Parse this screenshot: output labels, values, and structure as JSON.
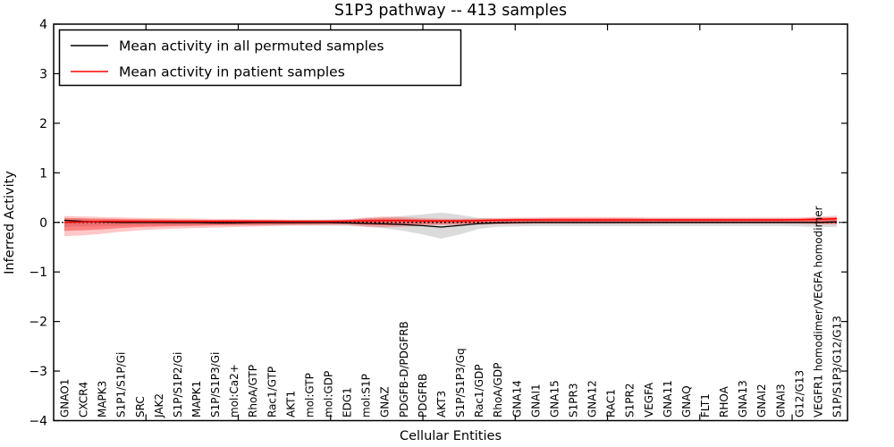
{
  "figure": {
    "title": "S1P3 pathway -- 413 samples",
    "xlabel": "Cellular Entities",
    "ylabel": "Inferred Activity",
    "legend": {
      "entries": [
        {
          "label": "Mean activity in all permuted samples",
          "color": "#000000"
        },
        {
          "label": "Mean activity in patient samples",
          "color": "#ff0000"
        }
      ]
    }
  },
  "chart_data": {
    "type": "line",
    "title": "S1P3 pathway -- 413 samples",
    "xlabel": "Cellular Entities",
    "ylabel": "Inferred Activity",
    "ylim": [
      -4,
      4
    ],
    "yticks": [
      -4,
      -3,
      -2,
      -1,
      0,
      1,
      2,
      3,
      4
    ],
    "grid": false,
    "legend_position": "upper left",
    "zero_line": {
      "y": 0,
      "style": "dotted",
      "color": "#000000"
    },
    "categories": [
      "GNAO1",
      "CXCR4",
      "MAPK3",
      "S1P1/S1P/Gi",
      "SRC",
      "JAK2",
      "S1P/S1P2/Gi",
      "MAPK1",
      "S1P/S1P3/Gi",
      "mol:Ca2+",
      "RhoA/GTP",
      "Rac1/GTP",
      "AKT1",
      "mol:GTP",
      "mol:GDP",
      "EDG1",
      "mol:S1P",
      "GNAZ",
      "PDGFB-D/PDGFRB",
      "PDGFRB",
      "AKT3",
      "S1P/S1P3/Gq",
      "Rac1/GDP",
      "RhoA/GDP",
      "GNA14",
      "GNAI1",
      "GNA15",
      "S1PR3",
      "GNA12",
      "RAC1",
      "S1PR2",
      "VEGFA",
      "GNA11",
      "GNAQ",
      "FLT1",
      "RHOA",
      "GNA13",
      "GNAI2",
      "GNAI3",
      "G12/G13",
      "VEGFR1 homodimer/VEGFA homodimer",
      "S1P/S1P3/G12/G13"
    ],
    "series": [
      {
        "name": "Mean activity in all permuted samples",
        "color": "#000000",
        "width": 1.3,
        "values": [
          0.04,
          0.02,
          0.01,
          0,
          0,
          0,
          -0.005,
          -0.005,
          -0.01,
          -0.01,
          -0.005,
          -0.005,
          -0.005,
          -0.005,
          -0.005,
          -0.01,
          -0.02,
          -0.03,
          -0.045,
          -0.065,
          -0.095,
          -0.06,
          -0.025,
          -0.01,
          -0.005,
          0,
          0,
          0,
          0,
          0,
          0,
          0,
          0,
          0,
          0,
          0,
          0,
          0,
          0,
          0,
          0,
          0.01
        ]
      },
      {
        "name": "Mean activity in patient samples",
        "color": "#ff0000",
        "width": 1.5,
        "values": [
          0,
          0.01,
          0.02,
          0.02,
          0.02,
          0.02,
          0.02,
          0.02,
          0.02,
          0.02,
          0.02,
          0.02,
          0.02,
          0.02,
          0.02,
          0.025,
          0.03,
          0.035,
          0.035,
          0.03,
          0.03,
          0.03,
          0.035,
          0.045,
          0.05,
          0.05,
          0.05,
          0.05,
          0.05,
          0.05,
          0.05,
          0.05,
          0.05,
          0.05,
          0.05,
          0.05,
          0.05,
          0.05,
          0.05,
          0.055,
          0.06,
          0.075
        ]
      }
    ],
    "bands": [
      {
        "name": "permuted-std-band",
        "fill": "rgba(125,125,125,0.28)",
        "upper": [
          0.07,
          0.065,
          0.06,
          0.055,
          0.05,
          0.05,
          0.05,
          0.05,
          0.05,
          0.05,
          0.05,
          0.05,
          0.05,
          0.05,
          0.055,
          0.06,
          0.08,
          0.1,
          0.13,
          0.16,
          0.2,
          0.15,
          0.09,
          0.075,
          0.07,
          0.07,
          0.07,
          0.07,
          0.07,
          0.07,
          0.07,
          0.07,
          0.07,
          0.07,
          0.07,
          0.07,
          0.07,
          0.07,
          0.07,
          0.075,
          0.1,
          0.1
        ],
        "lower": [
          -0.09,
          -0.08,
          -0.075,
          -0.07,
          -0.065,
          -0.06,
          -0.06,
          -0.06,
          -0.06,
          -0.06,
          -0.06,
          -0.06,
          -0.06,
          -0.06,
          -0.065,
          -0.07,
          -0.09,
          -0.12,
          -0.17,
          -0.24,
          -0.33,
          -0.24,
          -0.13,
          -0.09,
          -0.08,
          -0.075,
          -0.075,
          -0.075,
          -0.075,
          -0.075,
          -0.075,
          -0.075,
          -0.075,
          -0.075,
          -0.075,
          -0.075,
          -0.075,
          -0.075,
          -0.075,
          -0.08,
          -0.1,
          -0.09
        ]
      },
      {
        "name": "patient-std-band-outer",
        "fill": "rgba(255,0,0,0.22)",
        "upper": [
          0.13,
          0.12,
          0.11,
          0.1,
          0.09,
          0.085,
          0.08,
          0.075,
          0.07,
          0.07,
          0.065,
          0.06,
          0.055,
          0.055,
          0.055,
          0.06,
          0.1,
          0.12,
          0.11,
          0.085,
          0.075,
          0.075,
          0.08,
          0.09,
          0.1,
          0.1,
          0.105,
          0.11,
          0.11,
          0.11,
          0.105,
          0.1,
          0.1,
          0.1,
          0.1,
          0.1,
          0.1,
          0.1,
          0.1,
          0.1,
          0.115,
          0.135
        ],
        "lower": [
          -0.28,
          -0.26,
          -0.23,
          -0.19,
          -0.16,
          -0.14,
          -0.125,
          -0.115,
          -0.105,
          -0.095,
          -0.085,
          -0.075,
          -0.065,
          -0.06,
          -0.055,
          -0.055,
          -0.085,
          -0.1,
          -0.09,
          -0.065,
          -0.055,
          -0.05,
          -0.045,
          -0.04,
          -0.035,
          -0.03,
          -0.03,
          -0.03,
          -0.03,
          -0.03,
          -0.03,
          -0.03,
          -0.025,
          -0.025,
          -0.025,
          -0.025,
          -0.025,
          -0.025,
          -0.025,
          -0.03,
          -0.04,
          -0.045
        ]
      },
      {
        "name": "patient-std-band-inner",
        "fill": "rgba(255,0,0,0.35)",
        "upper": [
          0.09,
          0.08,
          0.075,
          0.07,
          0.065,
          0.06,
          0.055,
          0.055,
          0.05,
          0.05,
          0.045,
          0.045,
          0.04,
          0.04,
          0.04,
          0.045,
          0.07,
          0.08,
          0.075,
          0.06,
          0.055,
          0.055,
          0.06,
          0.065,
          0.075,
          0.075,
          0.08,
          0.08,
          0.08,
          0.08,
          0.08,
          0.075,
          0.075,
          0.075,
          0.075,
          0.075,
          0.075,
          0.075,
          0.075,
          0.075,
          0.085,
          0.1
        ],
        "lower": [
          -0.17,
          -0.16,
          -0.14,
          -0.115,
          -0.095,
          -0.085,
          -0.075,
          -0.07,
          -0.06,
          -0.055,
          -0.05,
          -0.045,
          -0.04,
          -0.035,
          -0.03,
          -0.03,
          -0.05,
          -0.06,
          -0.05,
          -0.035,
          -0.03,
          -0.028,
          -0.023,
          -0.02,
          -0.015,
          -0.012,
          -0.012,
          -0.012,
          -0.012,
          -0.012,
          -0.012,
          -0.012,
          -0.01,
          -0.01,
          -0.01,
          -0.01,
          -0.01,
          -0.01,
          -0.01,
          -0.012,
          -0.02,
          -0.022
        ]
      }
    ]
  }
}
